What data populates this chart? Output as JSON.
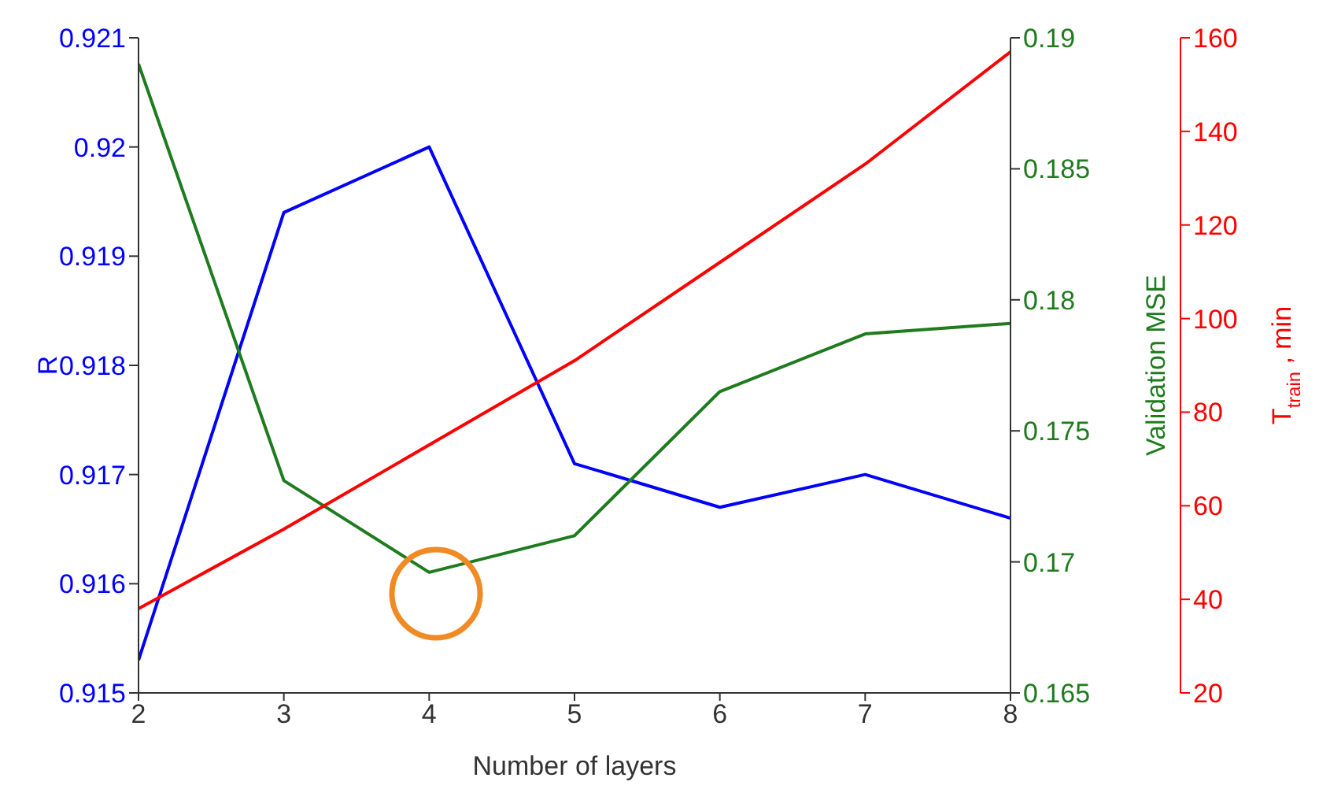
{
  "chart_data": {
    "type": "line",
    "xlabel": "Number of layers",
    "ylabel": "R",
    "y2label": "Validation MSE",
    "y3label": "T$_{train}$, min",
    "x": [
      2,
      3,
      4,
      5,
      6,
      7,
      8
    ],
    "xlim": [
      2,
      8
    ],
    "xticks": [
      2,
      3,
      4,
      5,
      6,
      7,
      8
    ],
    "ylim": [
      0.915,
      0.921
    ],
    "yticks": [
      0.915,
      0.916,
      0.917,
      0.918,
      0.919,
      0.92,
      0.921
    ],
    "y2lim": [
      0.165,
      0.19
    ],
    "y2ticks": [
      0.165,
      0.17,
      0.175,
      0.18,
      0.185,
      0.19
    ],
    "y3lim": [
      20,
      160
    ],
    "y3ticks": [
      20,
      40,
      60,
      80,
      100,
      120,
      140,
      160
    ],
    "series": [
      {
        "color": "#0000ff",
        "axis": "y",
        "values": [
          0.9153,
          0.9194,
          0.92,
          0.9171,
          0.9167,
          0.917,
          0.9166
        ]
      },
      {
        "color": "#1e7b1e",
        "axis": "y2",
        "values": [
          0.189,
          0.1731,
          0.1696,
          0.171,
          0.1765,
          0.1787,
          0.1791
        ]
      },
      {
        "color": "#ff0000",
        "axis": "y3",
        "values": [
          38,
          55,
          73,
          91,
          112,
          133,
          157
        ]
      }
    ]
  }
}
